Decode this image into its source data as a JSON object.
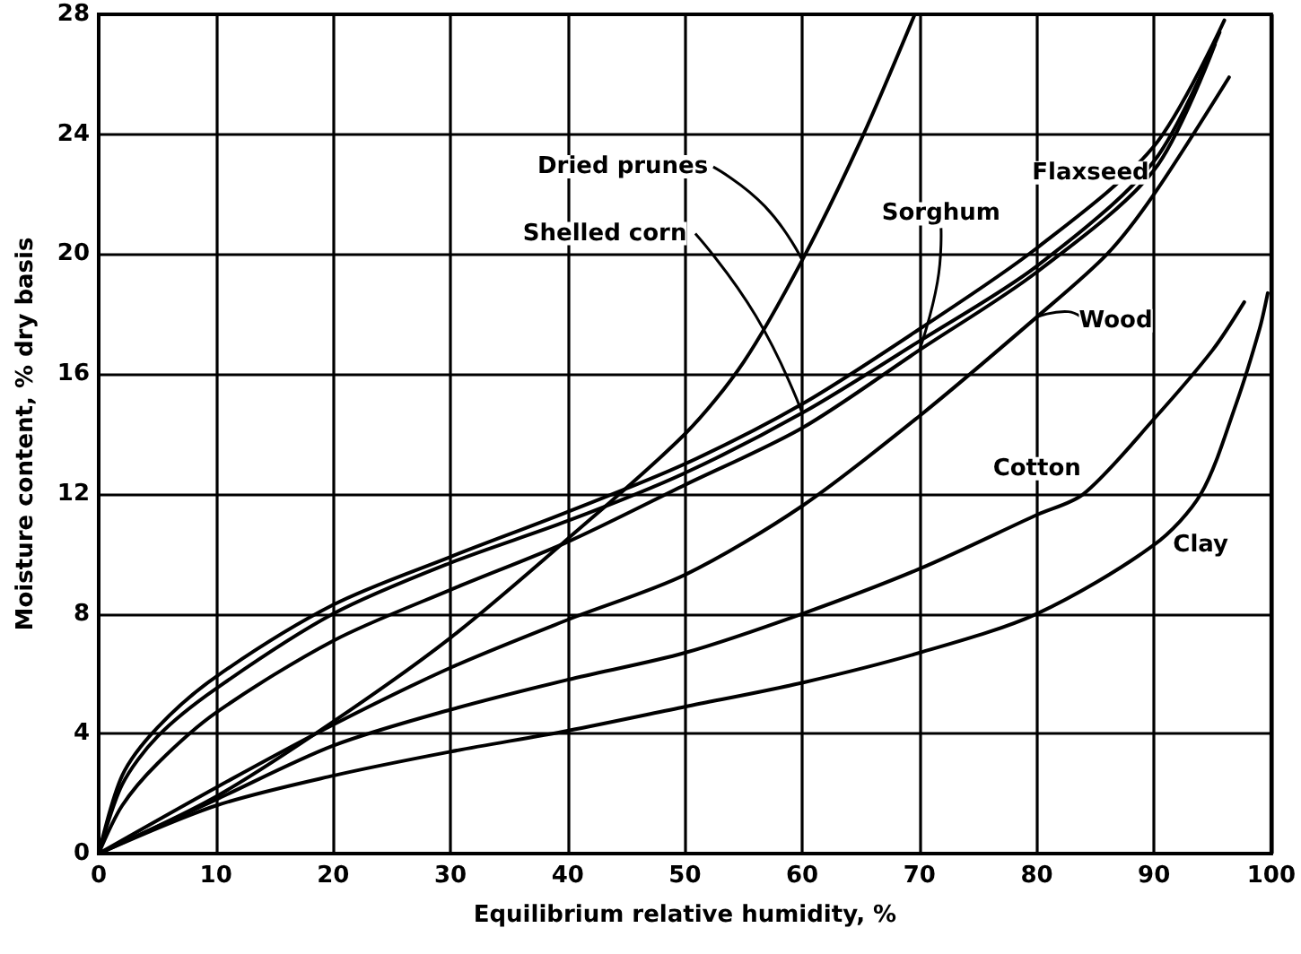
{
  "chart_data": {
    "type": "line",
    "xlabel": "Equilibrium relative humidity, %",
    "ylabel": "Moisture content, % dry basis",
    "xlim": [
      0,
      100
    ],
    "xticks": [
      0,
      10,
      20,
      30,
      40,
      50,
      60,
      70,
      80,
      90,
      100
    ],
    "ylim": [
      0,
      28
    ],
    "yticks": [
      0,
      4,
      8,
      12,
      16,
      20,
      24,
      28
    ],
    "grid": true,
    "marker": "none",
    "line_style": "solid",
    "annotations": [
      {
        "text": "Dried prunes",
        "x": 60,
        "y": 19.8
      },
      {
        "text": "Shelled corn",
        "x": 60,
        "y": 14.7
      },
      {
        "text": "Flaxseed",
        "x": 80,
        "y": 20.2
      },
      {
        "text": "Sorghum",
        "x": 70,
        "y": 16.8
      },
      {
        "text": "Wood",
        "x": 80,
        "y": 17.9
      },
      {
        "text": "Cotton",
        "x": 84,
        "y": 12
      },
      {
        "text": "Clay",
        "x": 90,
        "y": 10.3
      }
    ],
    "series": [
      {
        "color": "#000000",
        "x": [
          0,
          10,
          20,
          30,
          40,
          50,
          55,
          60,
          65,
          69.6
        ],
        "values": [
          0,
          1.9,
          4.4,
          7.2,
          10.5,
          14.0,
          16.4,
          19.8,
          23.8,
          28
        ]
      },
      {
        "color": "#000000",
        "x": [
          0,
          2,
          5,
          10,
          20,
          30,
          40,
          50,
          60,
          70,
          80,
          90,
          95.6
        ],
        "values": [
          0,
          2.3,
          3.9,
          5.5,
          8.0,
          9.7,
          11.1,
          12.7,
          14.7,
          17.1,
          19.6,
          23.1,
          27.4
        ]
      },
      {
        "color": "#000000",
        "x": [
          0,
          2,
          5,
          10,
          20,
          30,
          40,
          50,
          60,
          70,
          80,
          90,
          96
        ],
        "values": [
          0,
          2.6,
          4.2,
          5.9,
          8.3,
          9.9,
          11.4,
          13.0,
          15.0,
          17.5,
          20.2,
          23.6,
          27.8
        ]
      },
      {
        "color": "#000000",
        "x": [
          0,
          2,
          5,
          10,
          20,
          30,
          40,
          50,
          60,
          70,
          80,
          90,
          95.2
        ],
        "values": [
          0,
          1.6,
          3.0,
          4.7,
          7.1,
          8.8,
          10.4,
          12.3,
          14.2,
          16.8,
          19.4,
          22.8,
          27
        ]
      },
      {
        "color": "#000000",
        "x": [
          0,
          10,
          20,
          30,
          40,
          50,
          60,
          70,
          80,
          86,
          90,
          96.4
        ],
        "values": [
          0,
          2.2,
          4.3,
          6.2,
          7.8,
          9.3,
          11.6,
          14.6,
          17.9,
          20,
          22,
          25.9
        ]
      },
      {
        "color": "#000000",
        "x": [
          0,
          10,
          20,
          30,
          40,
          50,
          60,
          70,
          80,
          84,
          90,
          95,
          97.7
        ],
        "values": [
          0,
          1.8,
          3.6,
          4.8,
          5.8,
          6.7,
          8.0,
          9.5,
          11.3,
          12,
          14.5,
          16.8,
          18.4
        ]
      },
      {
        "color": "#000000",
        "x": [
          0,
          10,
          20,
          30,
          40,
          50,
          60,
          70,
          80,
          90,
          94,
          97,
          99,
          99.7
        ],
        "values": [
          0,
          1.6,
          2.6,
          3.4,
          4.1,
          4.9,
          5.7,
          6.7,
          8.0,
          10.3,
          12,
          15,
          17.5,
          18.7
        ]
      }
    ]
  }
}
